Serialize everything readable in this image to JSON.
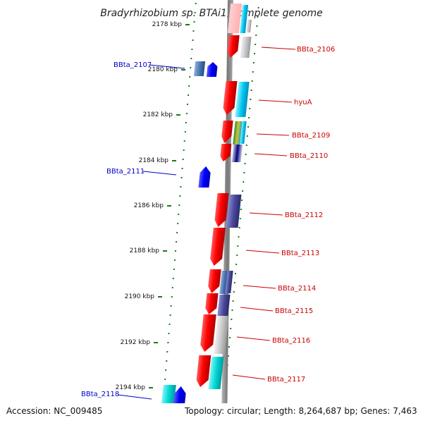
{
  "map": {
    "title": "Bradyrhizobium sp. BTAi1, complete genome",
    "accession": "Accession: NC_009485",
    "summary": "Topology: circular; Length: 8,264,687 bp; Genes: 7,463"
  },
  "ticks": [
    "2178 kbp",
    "2180 kbp",
    "2182 kbp",
    "2184 kbp",
    "2186 kbp",
    "2188 kbp",
    "2190 kbp",
    "2192 kbp",
    "2194 kbp"
  ],
  "right_labels": [
    "BBta_2106",
    "hyuA",
    "BBta_2109",
    "BBta_2110",
    "BBta_2112",
    "BBta_2113",
    "BBta_2114",
    "BBta_2115",
    "BBta_2116",
    "BBta_2117"
  ],
  "left_labels": [
    "BBta_2107",
    "BBta_2111",
    "BBta_2118"
  ],
  "colors": {
    "forward_gene": "#e60000",
    "reverse_gene": "#0000e6",
    "right_label": "#cc0000",
    "left_label": "#0000cc",
    "tick": "#1a7a1a",
    "backbone": "#808080"
  }
}
